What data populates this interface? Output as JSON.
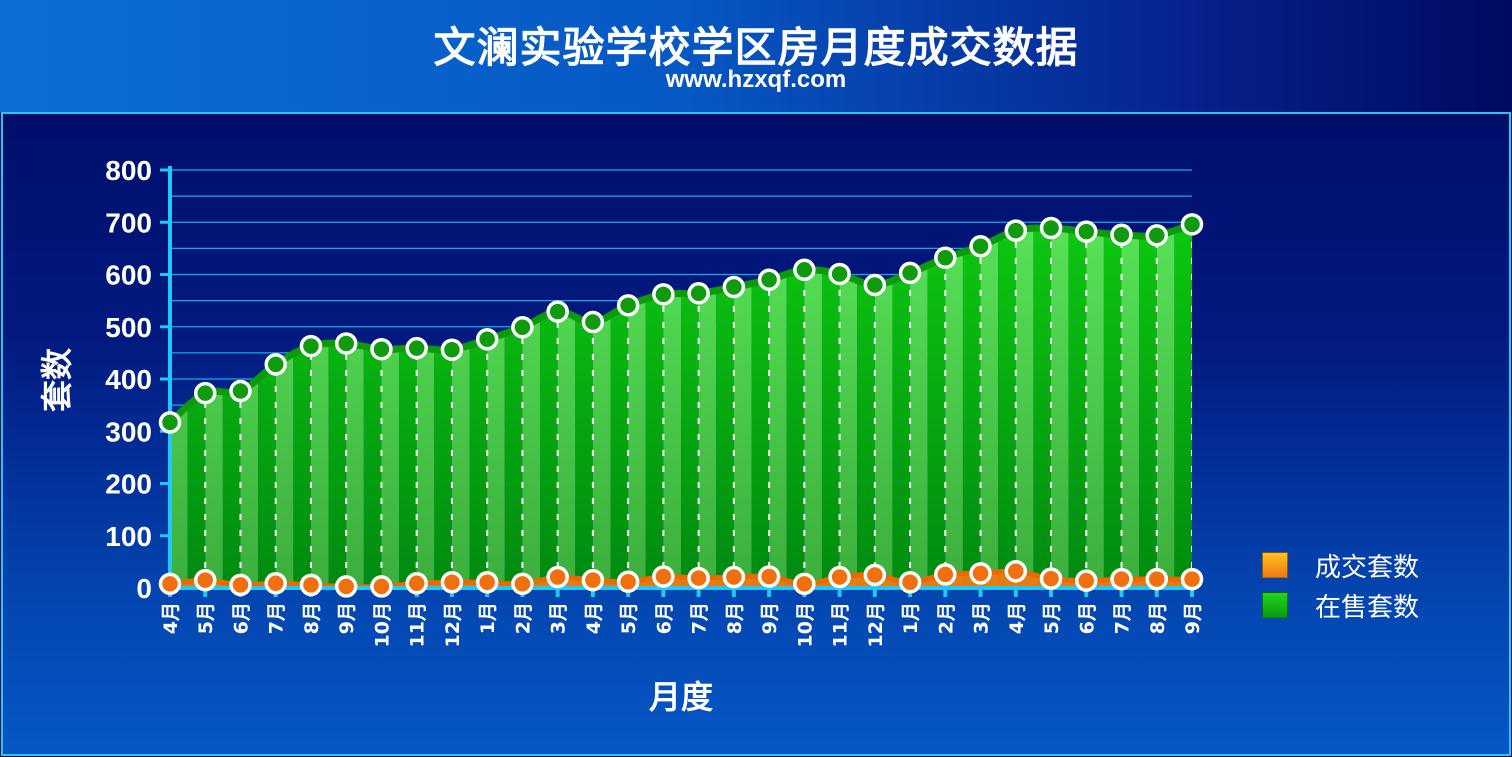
{
  "header": {
    "title": "文澜实验学校学区房月度成交数据",
    "subtitle": "www.hzxqf.com"
  },
  "colors": {
    "sold": "#f07a10",
    "listed": "#14c814"
  },
  "chart_data": {
    "type": "area",
    "title": "文澜实验学校学区房月度成交数据",
    "subtitle": "www.hzxqf.com",
    "xlabel": "月度",
    "ylabel": "套数",
    "ylim": [
      0,
      800
    ],
    "yticks": [
      "0",
      "100",
      "200",
      "300",
      "400",
      "500",
      "600",
      "700",
      "800"
    ],
    "categories": [
      "4月",
      "5月",
      "6月",
      "7月",
      "8月",
      "9月",
      "10月",
      "11月",
      "12月",
      "1月",
      "2月",
      "3月",
      "4月",
      "5月",
      "6月",
      "7月",
      "8月",
      "9月",
      "10月",
      "11月",
      "12月",
      "1月",
      "2月",
      "3月",
      "4月",
      "5月",
      "6月",
      "7月",
      "8月",
      "9月"
    ],
    "grid": true,
    "legend_position": "right",
    "series": [
      {
        "name": "成交套数",
        "color": "#f07a10",
        "values": [
          8,
          15,
          6,
          9,
          6,
          3,
          3,
          9,
          11,
          11,
          8,
          21,
          15,
          12,
          22,
          19,
          21,
          22,
          8,
          21,
          25,
          11,
          26,
          28,
          32,
          18,
          14,
          17,
          17,
          17
        ]
      },
      {
        "name": "在售套数",
        "color": "#14c814",
        "values": [
          317,
          373,
          377,
          428,
          463,
          468,
          457,
          459,
          456,
          476,
          499,
          529,
          509,
          541,
          562,
          564,
          576,
          590,
          609,
          601,
          580,
          603,
          632,
          654,
          684,
          689,
          682,
          676,
          675,
          696
        ]
      }
    ]
  }
}
